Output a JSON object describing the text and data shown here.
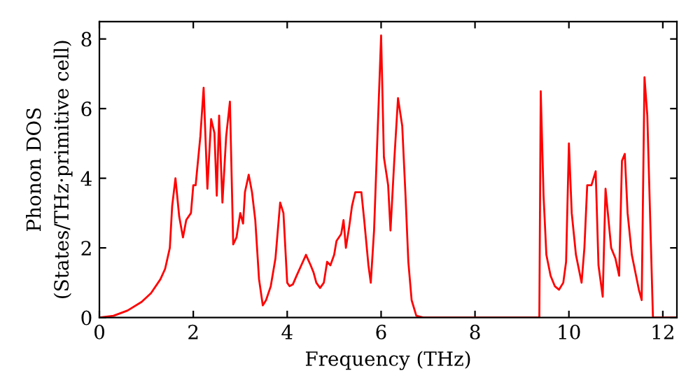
{
  "chart_data": {
    "type": "line",
    "xlabel": "Frequency (THz)",
    "ylabel": "Phonon DOS\n(States/THz·primitive cell)",
    "xlim": [
      0,
      12.3
    ],
    "ylim": [
      0,
      8.5
    ],
    "xticks": [
      0,
      2,
      4,
      6,
      8,
      10,
      12
    ],
    "yticks": [
      0,
      2,
      4,
      6,
      8
    ],
    "grid": false,
    "marker": "none",
    "line_style": "solid",
    "series": [
      {
        "color": "#ff0000",
        "x": [
          0,
          0.3,
          0.6,
          0.9,
          1.1,
          1.3,
          1.4,
          1.5,
          1.55,
          1.62,
          1.7,
          1.78,
          1.85,
          1.95,
          2.0,
          2.05,
          2.15,
          2.22,
          2.3,
          2.38,
          2.45,
          2.5,
          2.55,
          2.62,
          2.7,
          2.78,
          2.85,
          2.92,
          3.0,
          3.06,
          3.1,
          3.18,
          3.25,
          3.32,
          3.4,
          3.48,
          3.55,
          3.65,
          3.75,
          3.85,
          3.92,
          4.0,
          4.05,
          4.12,
          4.2,
          4.3,
          4.4,
          4.5,
          4.56,
          4.62,
          4.7,
          4.78,
          4.85,
          4.92,
          5.0,
          5.05,
          5.15,
          5.2,
          5.25,
          5.32,
          5.38,
          5.45,
          5.58,
          5.64,
          5.73,
          5.78,
          5.85,
          6.0,
          6.06,
          6.15,
          6.2,
          6.28,
          6.36,
          6.45,
          6.52,
          6.58,
          6.65,
          6.75,
          6.9,
          9.37,
          9.4,
          9.46,
          9.52,
          9.61,
          9.7,
          9.79,
          9.88,
          9.94,
          10.0,
          10.06,
          10.15,
          10.27,
          10.33,
          10.39,
          10.48,
          10.57,
          10.63,
          10.72,
          10.78,
          10.9,
          10.99,
          11.07,
          11.13,
          11.19,
          11.25,
          11.34,
          11.49,
          11.55,
          11.61,
          11.67,
          11.79,
          12.3
        ],
        "values": [
          0,
          0.05,
          0.2,
          0.45,
          0.7,
          1.1,
          1.4,
          2.0,
          3.2,
          4.0,
          2.9,
          2.3,
          2.8,
          3.0,
          3.8,
          3.8,
          5.2,
          6.6,
          3.7,
          5.7,
          5.3,
          3.5,
          5.8,
          3.3,
          5.2,
          6.2,
          2.1,
          2.3,
          3.0,
          2.7,
          3.6,
          4.1,
          3.6,
          2.8,
          1.1,
          0.35,
          0.5,
          0.9,
          1.7,
          3.3,
          3.0,
          1.0,
          0.9,
          0.95,
          1.2,
          1.5,
          1.8,
          1.5,
          1.3,
          1.0,
          0.85,
          1.0,
          1.6,
          1.5,
          1.8,
          2.2,
          2.4,
          2.8,
          2.0,
          2.6,
          3.2,
          3.6,
          3.6,
          2.8,
          1.5,
          1.0,
          2.5,
          8.1,
          4.6,
          3.8,
          2.5,
          4.5,
          6.3,
          5.5,
          3.5,
          1.6,
          0.5,
          0.05,
          0,
          0,
          6.5,
          3.5,
          1.8,
          1.2,
          0.9,
          0.8,
          1.0,
          1.6,
          5.0,
          3.0,
          1.8,
          1.0,
          2.0,
          3.8,
          3.8,
          4.2,
          1.5,
          0.6,
          3.7,
          2.0,
          1.7,
          1.2,
          4.5,
          4.7,
          3.0,
          1.8,
          0.8,
          0.5,
          6.9,
          5.8,
          0,
          0
        ]
      }
    ]
  }
}
